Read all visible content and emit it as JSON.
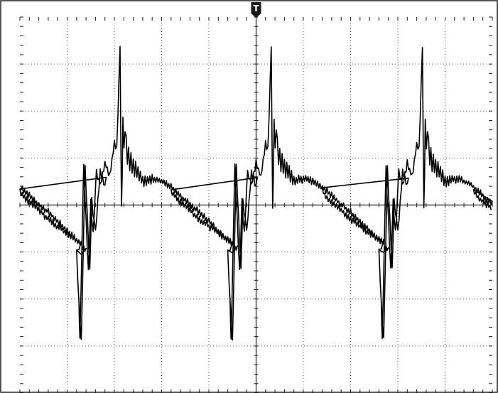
{
  "chart_data": {
    "type": "line",
    "title": "",
    "xlabel": "",
    "ylabel": "",
    "grid": true,
    "x_divisions": 10,
    "y_divisions": 8,
    "xlim": [
      0,
      10
    ],
    "ylim": [
      -4,
      4
    ],
    "trigger_marker": {
      "label": "T",
      "x": 5.0
    },
    "period_div": 3.2,
    "series": [
      {
        "x": [
          0.0,
          0.1,
          0.3,
          0.6,
          1.0,
          1.3,
          1.2,
          1.25,
          1.27,
          1.35,
          1.45,
          1.5,
          1.55,
          1.62,
          1.7,
          1.8,
          1.9,
          2.0,
          2.05,
          2.12,
          2.15,
          2.18,
          2.25,
          2.3,
          2.4,
          2.5,
          2.6,
          2.75,
          2.9,
          3.1,
          3.25,
          3.35,
          3.5,
          3.8,
          4.1,
          4.4,
          4.6,
          4.4,
          4.45,
          4.5,
          4.58,
          4.68,
          4.72,
          4.8,
          4.9,
          5.0,
          5.05
        ],
        "y": [
          0.3,
          0.15,
          0.0,
          -0.3,
          -0.6,
          -0.8,
          -1.0,
          -2.1,
          -2.9,
          0.8,
          -1.4,
          0.1,
          -0.6,
          0.7,
          0.4,
          0.9,
          0.6,
          1.3,
          1.2,
          3.3,
          -0.1,
          1.6,
          1.2,
          1.0,
          0.8,
          0.7,
          0.5,
          0.55,
          0.55,
          0.45,
          0.35,
          0.25,
          0.1,
          -0.15,
          -0.45,
          -0.75,
          -0.95,
          -1.0,
          -2.1,
          -2.9,
          0.8,
          -1.4,
          0.1,
          -0.6,
          0.7,
          0.4,
          0.9
        ],
        "ripple_amplitude": [
          0.05,
          0.05,
          0.05,
          0.05,
          0.05,
          0.05,
          0.05,
          0.05,
          0.05,
          0.05,
          0.05,
          0.05,
          0.05,
          0.05,
          0.05,
          0.05,
          0.05,
          0.05,
          0.05,
          0.05,
          0.05,
          0.25,
          0.25,
          0.22,
          0.18,
          0.14,
          0.1,
          0.08,
          0.06,
          0.05,
          0.05,
          0.05,
          0.05,
          0.05,
          0.05,
          0.05,
          0.05,
          0.05,
          0.05,
          0.05,
          0.05,
          0.05,
          0.05,
          0.05,
          0.05,
          0.05,
          0.05
        ]
      }
    ]
  }
}
